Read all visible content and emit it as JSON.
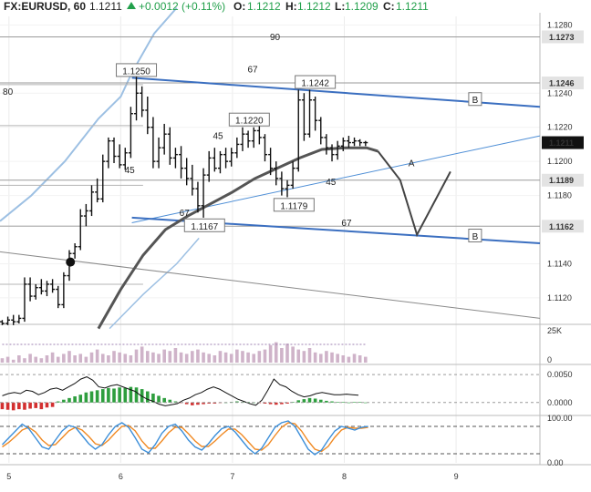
{
  "header": {
    "symbol": "FX:EURUSD, 60",
    "last": "1.1211",
    "change": "+0.0012 (+0.11%)",
    "o_label": "O:",
    "o": "1.1212",
    "h_label": "H:",
    "h": "1.1212",
    "l_label": "L:",
    "l": "1.1209",
    "c_label": "C:",
    "c": "1.1211"
  },
  "colors": {
    "candle": "#111111",
    "channel": "#3b6fc0",
    "trendline": "#4f8fd6",
    "bollinger": "#9dc0e3",
    "ma": "#555555",
    "level": "#9a9a9a",
    "macd_up": "#2e9e3e",
    "macd_down": "#d32f2f",
    "stoch_k": "#3d8fd9",
    "stoch_d": "#f08a24",
    "volume": "#cfb3c9"
  },
  "chart_data": {
    "type": "candlestick",
    "price_axis": {
      "range": [
        1.1105,
        1.1285
      ],
      "ticks": [
        "1.1280",
        "1.1240",
        "1.1220",
        "1.1200",
        "1.1180",
        "1.1140",
        "1.1120"
      ]
    },
    "time_axis": {
      "labels": [
        "5",
        "6",
        "7",
        "8",
        "9"
      ],
      "range": [
        4.92,
        9.75
      ]
    },
    "price_tags": [
      {
        "value": 1.1273,
        "text": "1.1273"
      },
      {
        "value": 1.1246,
        "text": "1.1246"
      },
      {
        "value": 1.1211,
        "text": "1.1211",
        "current": true
      },
      {
        "value": 1.1189,
        "text": "1.1189"
      },
      {
        "value": 1.1162,
        "text": "1.1162"
      }
    ],
    "candles": [
      [
        4.94,
        1.1106,
        1.1107,
        1.1104,
        1.1105
      ],
      [
        4.99,
        1.1105,
        1.1109,
        1.1104,
        1.1107
      ],
      [
        5.04,
        1.1107,
        1.111,
        1.1104,
        1.1106
      ],
      [
        5.09,
        1.1106,
        1.111,
        1.1105,
        1.1108
      ],
      [
        5.14,
        1.1108,
        1.1132,
        1.1106,
        1.1128
      ],
      [
        5.19,
        1.1128,
        1.1132,
        1.1118,
        1.1121
      ],
      [
        5.24,
        1.1121,
        1.1128,
        1.1119,
        1.1126
      ],
      [
        5.29,
        1.1126,
        1.1131,
        1.1122,
        1.1124
      ],
      [
        5.34,
        1.1124,
        1.113,
        1.1121,
        1.1128
      ],
      [
        5.39,
        1.1128,
        1.1131,
        1.1123,
        1.1125
      ],
      [
        5.44,
        1.1125,
        1.1127,
        1.1114,
        1.1116
      ],
      [
        5.49,
        1.1116,
        1.1135,
        1.1114,
        1.1133
      ],
      [
        5.54,
        1.1133,
        1.1148,
        1.113,
        1.1146
      ],
      [
        5.59,
        1.1146,
        1.1152,
        1.1143,
        1.115
      ],
      [
        5.64,
        1.115,
        1.1172,
        1.1148,
        1.1168
      ],
      [
        5.69,
        1.1168,
        1.1175,
        1.1162,
        1.1171
      ],
      [
        5.74,
        1.1171,
        1.1186,
        1.1168,
        1.1182
      ],
      [
        5.79,
        1.1182,
        1.119,
        1.1176,
        1.1178
      ],
      [
        5.84,
        1.1178,
        1.1204,
        1.1176,
        1.12
      ],
      [
        5.89,
        1.12,
        1.1214,
        1.1196,
        1.1212
      ],
      [
        5.94,
        1.1212,
        1.1214,
        1.1199,
        1.1203
      ],
      [
        5.99,
        1.1203,
        1.121,
        1.1196,
        1.1198
      ],
      [
        6.04,
        1.1198,
        1.1208,
        1.1195,
        1.1205
      ],
      [
        6.09,
        1.1205,
        1.1232,
        1.1202,
        1.1228
      ],
      [
        6.14,
        1.1228,
        1.125,
        1.1224,
        1.124
      ],
      [
        6.19,
        1.124,
        1.1244,
        1.1226,
        1.123
      ],
      [
        6.24,
        1.123,
        1.1238,
        1.1216,
        1.122
      ],
      [
        6.29,
        1.122,
        1.1226,
        1.1196,
        1.12
      ],
      [
        6.34,
        1.12,
        1.1214,
        1.1196,
        1.1208
      ],
      [
        6.39,
        1.1208,
        1.1222,
        1.1204,
        1.1216
      ],
      [
        6.44,
        1.1216,
        1.122,
        1.1198,
        1.1202
      ],
      [
        6.49,
        1.1202,
        1.1208,
        1.1196,
        1.1204
      ],
      [
        6.54,
        1.1204,
        1.1209,
        1.119,
        1.1196
      ],
      [
        6.59,
        1.1196,
        1.1202,
        1.1186,
        1.119
      ],
      [
        6.64,
        1.119,
        1.1198,
        1.118,
        1.1184
      ],
      [
        6.69,
        1.1184,
        1.1188,
        1.117,
        1.1174
      ],
      [
        6.74,
        1.1174,
        1.1196,
        1.1167,
        1.1192
      ],
      [
        6.79,
        1.1192,
        1.1206,
        1.1188,
        1.1202
      ],
      [
        6.84,
        1.1202,
        1.1208,
        1.1194,
        1.1196
      ],
      [
        6.89,
        1.1196,
        1.1206,
        1.1193,
        1.1204
      ],
      [
        6.94,
        1.1204,
        1.1208,
        1.1196,
        1.12
      ],
      [
        6.99,
        1.12,
        1.1208,
        1.1197,
        1.1205
      ],
      [
        7.04,
        1.1205,
        1.1214,
        1.1202,
        1.121
      ],
      [
        7.09,
        1.121,
        1.122,
        1.1206,
        1.1216
      ],
      [
        7.14,
        1.1216,
        1.1218,
        1.1208,
        1.1212
      ],
      [
        7.19,
        1.1212,
        1.122,
        1.1208,
        1.1218
      ],
      [
        7.24,
        1.1218,
        1.1221,
        1.121,
        1.1214
      ],
      [
        7.29,
        1.1214,
        1.1216,
        1.12,
        1.1204
      ],
      [
        7.34,
        1.1204,
        1.1208,
        1.1192,
        1.1196
      ],
      [
        7.39,
        1.1196,
        1.12,
        1.1186,
        1.119
      ],
      [
        7.44,
        1.119,
        1.1194,
        1.118,
        1.1184
      ],
      [
        7.49,
        1.1184,
        1.1189,
        1.1179,
        1.1186
      ],
      [
        7.54,
        1.1186,
        1.12,
        1.1184,
        1.1196
      ],
      [
        7.59,
        1.1196,
        1.1242,
        1.1194,
        1.1236
      ],
      [
        7.64,
        1.1236,
        1.124,
        1.1212,
        1.1216
      ],
      [
        7.69,
        1.1216,
        1.1242,
        1.1214,
        1.1236
      ],
      [
        7.74,
        1.1236,
        1.1238,
        1.1218,
        1.1224
      ],
      [
        7.79,
        1.1224,
        1.1226,
        1.121,
        1.1214
      ],
      [
        7.84,
        1.1214,
        1.1216,
        1.1204,
        1.1208
      ],
      [
        7.89,
        1.1208,
        1.121,
        1.12,
        1.1204
      ],
      [
        7.94,
        1.1204,
        1.1212,
        1.1201,
        1.1209
      ],
      [
        7.99,
        1.1209,
        1.1214,
        1.1206,
        1.1212
      ],
      [
        8.04,
        1.1212,
        1.1215,
        1.1208,
        1.1211
      ],
      [
        8.09,
        1.1211,
        1.1214,
        1.1209,
        1.1212
      ],
      [
        8.14,
        1.1212,
        1.1213,
        1.1209,
        1.1211
      ],
      [
        8.19,
        1.1211,
        1.1212,
        1.1209,
        1.1211
      ]
    ],
    "moving_average": [
      [
        5.8,
        1.1102
      ],
      [
        6.0,
        1.1125
      ],
      [
        6.2,
        1.1145
      ],
      [
        6.4,
        1.116
      ],
      [
        6.6,
        1.1168
      ],
      [
        6.8,
        1.1175
      ],
      [
        7.0,
        1.1182
      ],
      [
        7.2,
        1.119
      ],
      [
        7.4,
        1.1196
      ],
      [
        7.6,
        1.1202
      ],
      [
        7.8,
        1.1207
      ],
      [
        8.0,
        1.1208
      ],
      [
        8.2,
        1.1208
      ],
      [
        8.3,
        1.1206
      ]
    ],
    "bollinger_upper": [
      [
        4.92,
        1.1165
      ],
      [
        5.2,
        1.118
      ],
      [
        5.5,
        1.12
      ],
      [
        5.8,
        1.1225
      ],
      [
        6.0,
        1.1238
      ],
      [
        6.1,
        1.1252
      ],
      [
        6.3,
        1.1275
      ],
      [
        6.5,
        1.129
      ]
    ],
    "bollinger_lower": [
      [
        5.9,
        1.1102
      ],
      [
        6.2,
        1.1122
      ],
      [
        6.5,
        1.114
      ],
      [
        6.7,
        1.1155
      ]
    ],
    "channel_upper": [
      [
        6.1,
        1.1249
      ],
      [
        9.75,
        1.1232
      ]
    ],
    "channel_lower": [
      [
        6.1,
        1.1167
      ],
      [
        9.75,
        1.1152
      ]
    ],
    "trend_line": [
      [
        6.1,
        1.1164
      ],
      [
        9.75,
        1.1215
      ]
    ],
    "down_trendline": [
      [
        4.92,
        1.1147
      ],
      [
        9.75,
        1.1108
      ]
    ],
    "projection": [
      [
        8.3,
        1.1206
      ],
      [
        8.5,
        1.1189
      ],
      [
        8.65,
        1.1157
      ],
      [
        8.95,
        1.1194
      ]
    ],
    "labels": [
      {
        "text": "1.1250",
        "x": 6.14,
        "y": 1.1253,
        "box": true
      },
      {
        "text": "1.1242",
        "x": 7.74,
        "y": 1.1246,
        "box": true
      },
      {
        "text": "1.1220",
        "x": 7.15,
        "y": 1.1224,
        "box": true
      },
      {
        "text": "1.1179",
        "x": 7.55,
        "y": 1.1174,
        "box": true
      },
      {
        "text": "1.1167",
        "x": 6.75,
        "y": 1.1162,
        "box": true
      },
      {
        "text": "80",
        "x": 4.99,
        "y": 1.1241
      },
      {
        "text": "90",
        "x": 7.38,
        "y": 1.1273
      },
      {
        "text": "67",
        "x": 7.18,
        "y": 1.1254
      },
      {
        "text": "45",
        "x": 6.87,
        "y": 1.1215
      },
      {
        "text": "45",
        "x": 6.08,
        "y": 1.1195
      },
      {
        "text": "67",
        "x": 6.57,
        "y": 1.117
      },
      {
        "text": "45",
        "x": 7.88,
        "y": 1.1188
      },
      {
        "text": "67",
        "x": 8.02,
        "y": 1.1164
      },
      {
        "text": "A",
        "x": 8.6,
        "y": 1.1199
      },
      {
        "text": "B",
        "x": 9.17,
        "y": 1.1236,
        "box": true
      },
      {
        "text": "B",
        "x": 9.17,
        "y": 1.1156,
        "box": true
      }
    ],
    "volume_axis": {
      "ticks": [
        "25K",
        "0"
      ]
    },
    "volume": [
      3,
      4,
      2,
      5,
      3,
      6,
      4,
      3,
      5,
      7,
      4,
      6,
      8,
      5,
      6,
      4,
      7,
      9,
      6,
      5,
      8,
      7,
      6,
      5,
      9,
      11,
      8,
      7,
      6,
      9,
      8,
      10,
      7,
      6,
      8,
      9,
      7,
      6,
      5,
      8,
      7,
      6,
      9,
      8,
      7,
      6,
      8,
      9,
      12,
      14,
      10,
      13,
      11,
      9,
      8,
      10,
      7,
      6,
      8,
      7,
      6,
      5,
      4,
      6,
      5,
      4
    ],
    "macd_axis": {
      "ticks": [
        "0.0050",
        "0.0000"
      ]
    },
    "macd_hist": [
      -0.0012,
      -0.0013,
      -0.0014,
      -0.0012,
      -0.0013,
      -0.0011,
      -0.001,
      -0.0012,
      -0.0009,
      -0.0008,
      0.0002,
      0.0005,
      0.0008,
      0.0011,
      0.0014,
      0.0018,
      0.002,
      0.0022,
      0.0024,
      0.0026,
      0.0025,
      0.0027,
      0.0026,
      0.0028,
      0.0027,
      0.0024,
      0.002,
      0.0016,
      0.0012,
      0.0008,
      0.0005,
      0.0002,
      -0.0001,
      -0.0003,
      -0.0005,
      -0.0004,
      -0.0003,
      -0.0002,
      -0.0002,
      -0.0001,
      0.0,
      0.0001,
      0.0002,
      0.0001,
      0.0001,
      0.0,
      -0.0001,
      -0.0002,
      -0.0003,
      -0.0004,
      -0.0003,
      -0.0002,
      0.0001,
      0.0004,
      0.0006,
      0.0008,
      0.0007,
      0.0005,
      0.0003,
      0.0002,
      0.0001,
      0.0001,
      0.0,
      0.0001,
      0.0001,
      0.0
    ],
    "macd_line": [
      0.0012,
      0.0016,
      0.0018,
      0.0016,
      0.0022,
      0.002,
      0.0014,
      0.0018,
      0.0024,
      0.0026,
      0.0022,
      0.0028,
      0.0034,
      0.0042,
      0.0046,
      0.004,
      0.0028,
      0.0026,
      0.003,
      0.0032,
      0.0028,
      0.0024,
      0.002,
      0.0012,
      0.0006,
      0.0002,
      -0.0003,
      -0.0006,
      -0.0004,
      -0.0002,
      0.0004,
      0.0008,
      0.0014,
      0.0018,
      0.0024,
      0.0028,
      0.0024,
      0.0018,
      0.0012,
      0.0006,
      0.0002,
      -0.0002,
      -0.0005,
      0.0004,
      0.0022,
      0.0042,
      0.0032,
      0.0028,
      0.002,
      0.0014,
      0.001,
      0.0012,
      0.0016,
      0.0018,
      0.0016,
      0.0014,
      0.0014,
      0.0015,
      0.0014,
      0.0013
    ],
    "stoch_axis": {
      "ticks": [
        "100.00",
        "0.00"
      ]
    },
    "stoch_k": [
      40,
      55,
      70,
      85,
      75,
      55,
      35,
      30,
      50,
      70,
      82,
      78,
      60,
      42,
      30,
      40,
      62,
      80,
      88,
      78,
      55,
      30,
      22,
      40,
      65,
      80,
      85,
      70,
      50,
      35,
      28,
      42,
      60,
      75,
      80,
      68,
      50,
      32,
      20,
      32,
      55,
      78,
      88,
      92,
      80,
      55,
      30,
      18,
      28,
      50,
      70,
      80,
      76,
      72,
      78,
      80
    ],
    "stoch_d": [
      35,
      45,
      58,
      72,
      78,
      68,
      50,
      38,
      40,
      55,
      70,
      78,
      72,
      58,
      42,
      38,
      50,
      66,
      80,
      82,
      70,
      48,
      32,
      32,
      48,
      66,
      78,
      78,
      64,
      48,
      36,
      36,
      48,
      62,
      74,
      74,
      62,
      46,
      30,
      28,
      40,
      60,
      78,
      88,
      86,
      70,
      48,
      30,
      25,
      36,
      56,
      72,
      78,
      76,
      76,
      78
    ]
  }
}
